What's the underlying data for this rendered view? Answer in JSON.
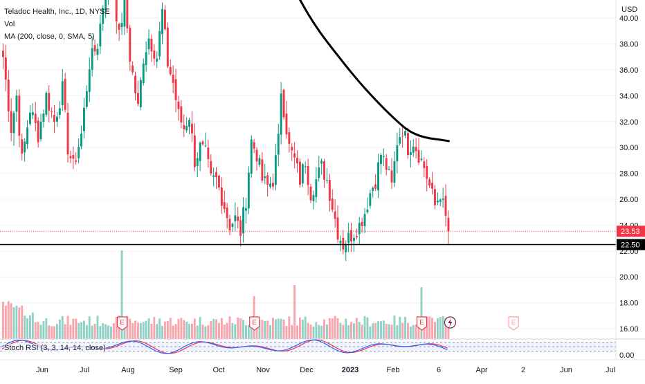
{
  "legend": {
    "symbol": "Teladoc Health, Inc., 1D, NYSE",
    "volume": "Vol",
    "ma": "MA (200, close, 0, SMA, 5)",
    "stoch": "Stoch RSI (3, 3, 14, 14, close)"
  },
  "currency": "USD",
  "price_tags": {
    "last": {
      "label": "23.53",
      "value": 23.53,
      "color": "#f23645"
    },
    "level": {
      "label": "22.50",
      "value": 22.5,
      "color": "#000000"
    }
  },
  "colors": {
    "up": "#089981",
    "down": "#f23645",
    "ma": "#000000",
    "k_line": "#2962ff",
    "d_line": "#f23645"
  },
  "chart_data": {
    "type": "candlestick",
    "y_axis": {
      "ticks": [
        16,
        18,
        20,
        22,
        24,
        26,
        28,
        30,
        32,
        34,
        36,
        38,
        40
      ],
      "tick_labels": [
        "16.00",
        "18.00",
        "20.00",
        "22.00",
        "24.00",
        "26.00",
        "28.00",
        "30.00",
        "32.00",
        "34.00",
        "36.00",
        "38.00",
        "40.00"
      ],
      "range": [
        15.2,
        41.4
      ]
    },
    "x_axis": {
      "labels": [
        "Jun",
        "Jul",
        "Aug",
        "Sep",
        "Oct",
        "Nov",
        "Dec",
        "2023",
        "Feb",
        "6",
        "Apr",
        "2",
        "Jun",
        "Jul"
      ],
      "bold": [
        "2023"
      ]
    },
    "price_anchors": [
      [
        0,
        37.0
      ],
      [
        3,
        31.5
      ],
      [
        5,
        34.0
      ],
      [
        7,
        29.0
      ],
      [
        10,
        33.0
      ],
      [
        13,
        31.0
      ],
      [
        16,
        34.0
      ],
      [
        19,
        32.0
      ],
      [
        22,
        34.5
      ],
      [
        24,
        30.0
      ],
      [
        26,
        28.5
      ],
      [
        29,
        31.0
      ],
      [
        32,
        36.5
      ],
      [
        35,
        38.0
      ],
      [
        37,
        41.0
      ],
      [
        40,
        44.0
      ],
      [
        43,
        38.5
      ],
      [
        45,
        41.5
      ],
      [
        47,
        37.0
      ],
      [
        50,
        33.0
      ],
      [
        52,
        37.0
      ],
      [
        54,
        38.5
      ],
      [
        57,
        37.0
      ],
      [
        59,
        40.5
      ],
      [
        61,
        36.5
      ],
      [
        63,
        35.0
      ],
      [
        65,
        32.5
      ],
      [
        67,
        31.5
      ],
      [
        69,
        32.5
      ],
      [
        71,
        29.0
      ],
      [
        73,
        30.0
      ],
      [
        75,
        29.5
      ],
      [
        77,
        27.5
      ],
      [
        79,
        27.5
      ],
      [
        82,
        25.5
      ],
      [
        84,
        24.0
      ],
      [
        86,
        24.5
      ],
      [
        88,
        23.5
      ],
      [
        90,
        26.0
      ],
      [
        92,
        30.5
      ],
      [
        94,
        29.5
      ],
      [
        96,
        27.5
      ],
      [
        98,
        27.0
      ],
      [
        100,
        27.5
      ],
      [
        102,
        30.5
      ],
      [
        103,
        34.5
      ],
      [
        104,
        33.0
      ],
      [
        106,
        30.0
      ],
      [
        108,
        29.0
      ],
      [
        110,
        27.5
      ],
      [
        112,
        29.0
      ],
      [
        114,
        26.5
      ],
      [
        116,
        27.5
      ],
      [
        118,
        28.5
      ],
      [
        120,
        27.5
      ],
      [
        122,
        25.5
      ],
      [
        124,
        23.5
      ],
      [
        126,
        22.5
      ],
      [
        128,
        23.0
      ],
      [
        130,
        23.5
      ],
      [
        132,
        24.0
      ],
      [
        134,
        25.0
      ],
      [
        136,
        26.5
      ],
      [
        138,
        27.5
      ],
      [
        140,
        29.5
      ],
      [
        142,
        28.5
      ],
      [
        144,
        27.0
      ],
      [
        146,
        30.5
      ],
      [
        148,
        31.5
      ],
      [
        150,
        30.0
      ],
      [
        152,
        30.5
      ],
      [
        154,
        29.5
      ],
      [
        156,
        28.5
      ],
      [
        158,
        27.0
      ],
      [
        160,
        25.5
      ],
      [
        162,
        26.5
      ],
      [
        164,
        24.5
      ],
      [
        165,
        23.53
      ]
    ],
    "ma_200": {
      "anchors": [
        [
          107,
          42.5
        ],
        [
          115,
          39.5
        ],
        [
          125,
          36.8
        ],
        [
          132,
          35.0
        ],
        [
          140,
          33.2
        ],
        [
          146,
          32.0
        ],
        [
          150,
          31.3
        ],
        [
          154,
          30.9
        ],
        [
          158,
          30.7
        ],
        [
          162,
          30.6
        ],
        [
          165,
          30.5
        ]
      ]
    },
    "volume": {
      "unit": "relative"
    },
    "earnings_markers": {
      "label": "E",
      "bars": [
        44,
        93,
        155
      ],
      "upcoming_bars": [
        189
      ]
    },
    "dividend_marker": {
      "bars": [
        165
      ]
    },
    "stoch_rsi": {
      "bands": [
        80,
        50,
        20
      ],
      "tick_label": "0.00",
      "range": [
        0,
        100
      ]
    }
  }
}
